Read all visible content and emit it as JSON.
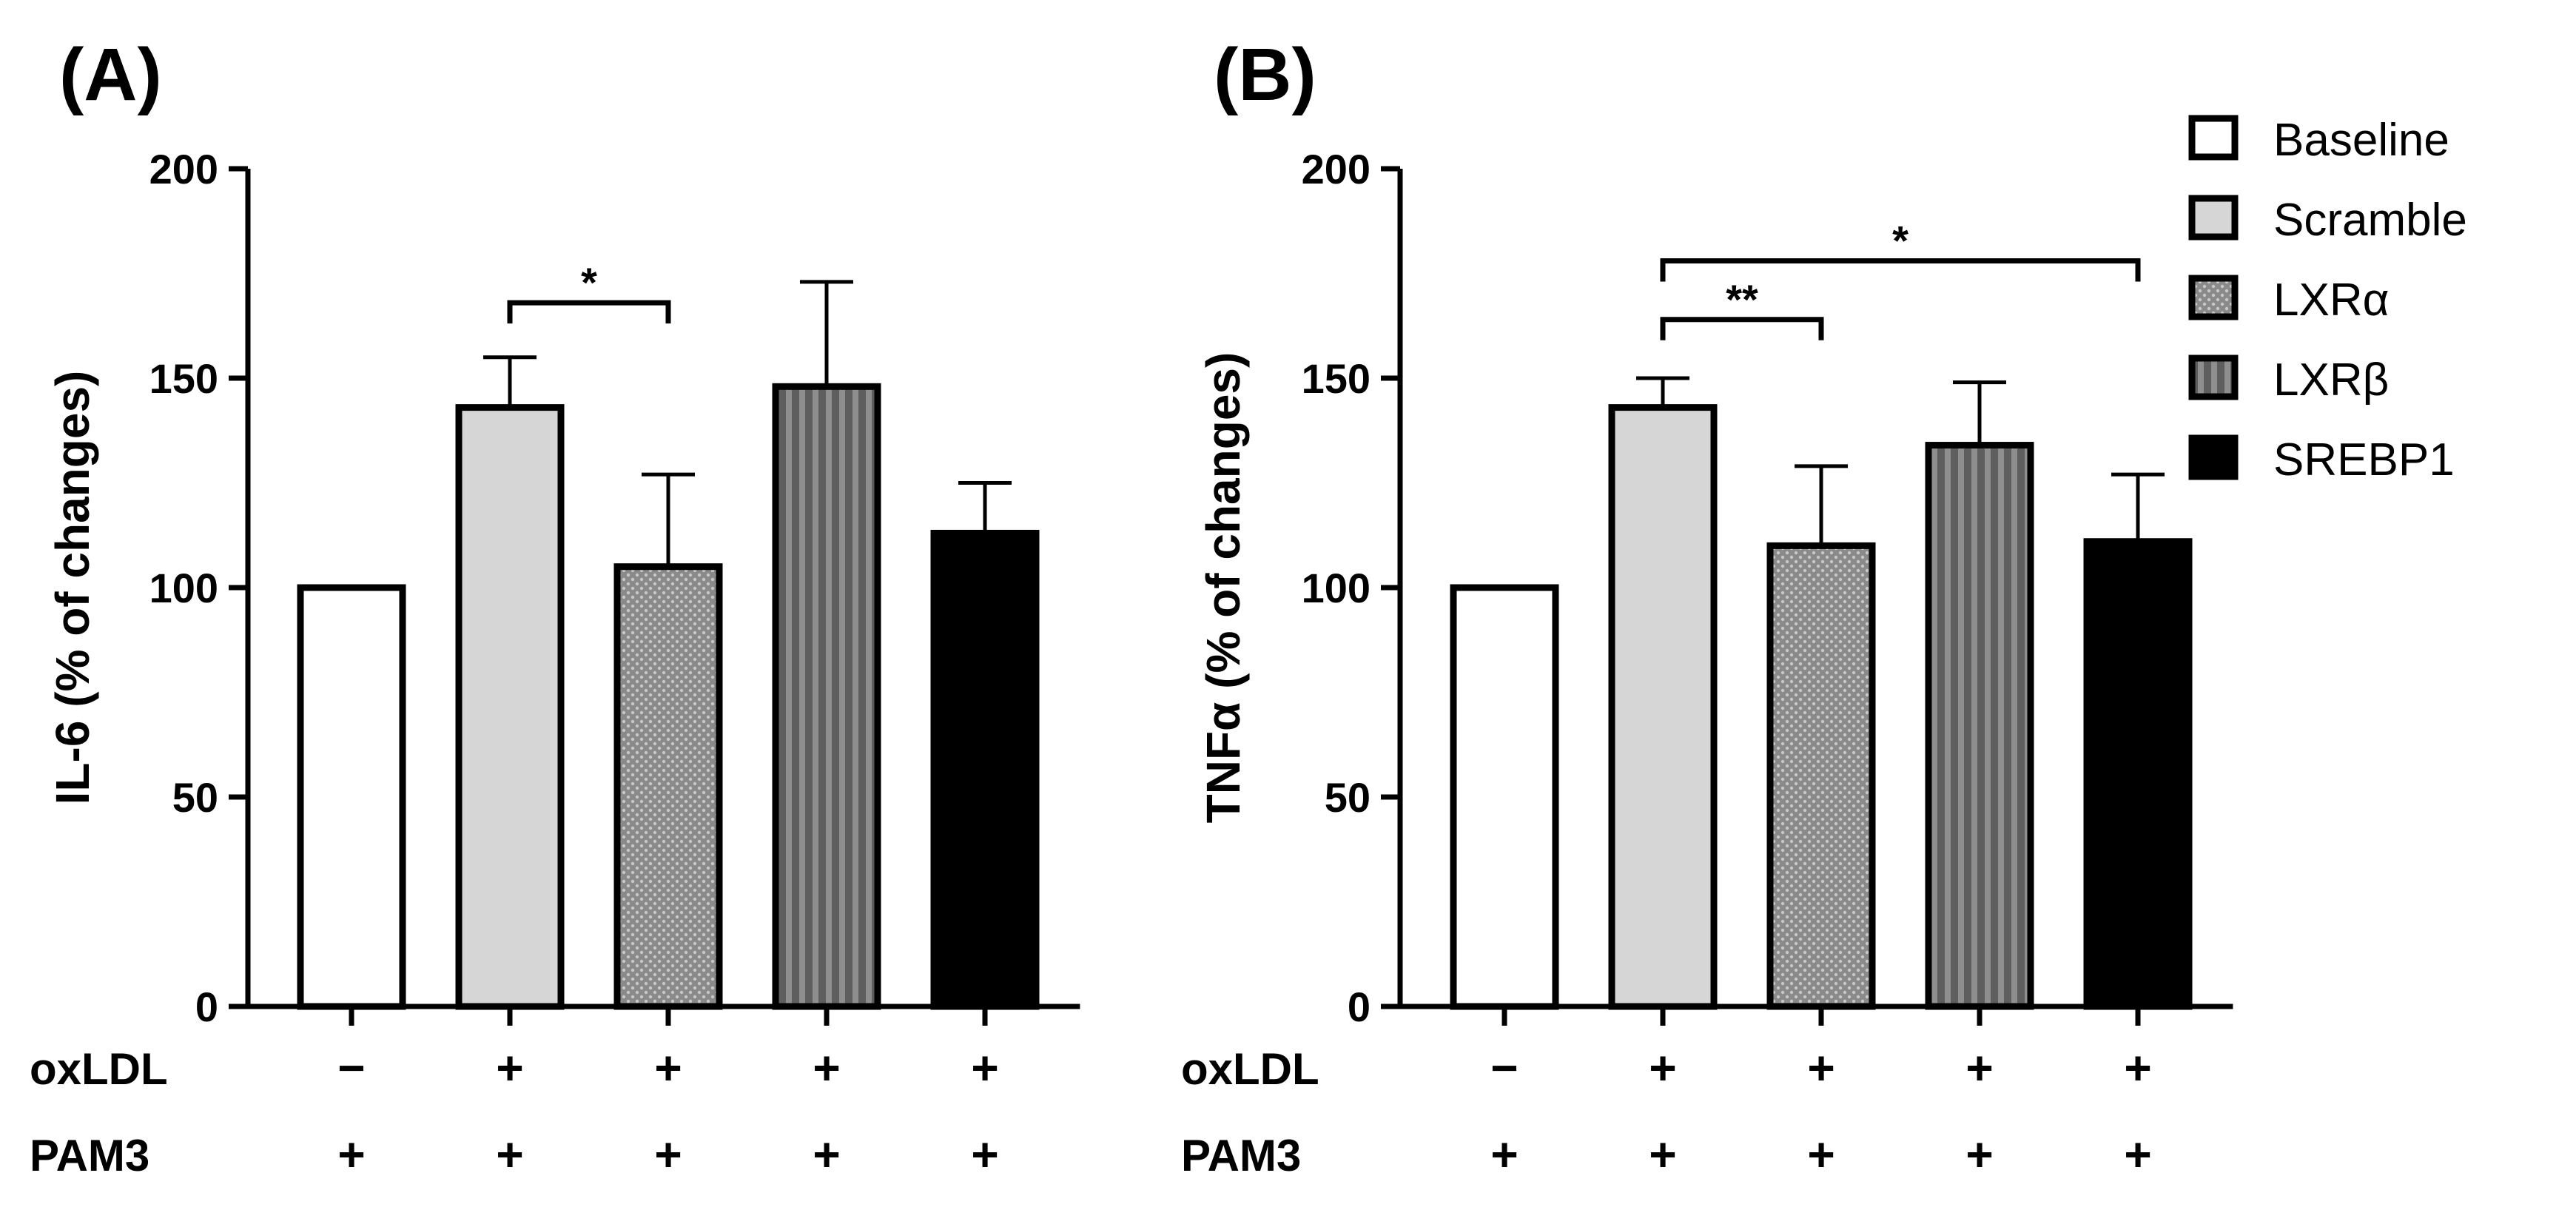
{
  "chart_data": [
    {
      "type": "bar",
      "panel_label": "(A)",
      "ylabel": "IL-6 (% of changes)",
      "ylim": [
        0,
        200
      ],
      "yticks": [
        "0",
        "50",
        "100",
        "150",
        "200"
      ],
      "categories": [
        "Baseline",
        "Scramble",
        "LXRα",
        "LXRβ",
        "SREBP1"
      ],
      "values": [
        100,
        143,
        105,
        148,
        113
      ],
      "errors": [
        0,
        12,
        22,
        25,
        12
      ],
      "significance": [
        {
          "from": 1,
          "to": 2,
          "label": "*",
          "level": 168
        }
      ],
      "conditions": [
        {
          "label": "oxLDL",
          "signs": [
            "−",
            "+",
            "+",
            "+",
            "+"
          ]
        },
        {
          "label": "PAM3",
          "signs": [
            "+",
            "+",
            "+",
            "+",
            "+"
          ]
        }
      ]
    },
    {
      "type": "bar",
      "panel_label": "(B)",
      "ylabel": "TNFα (% of changes)",
      "ylim": [
        0,
        200
      ],
      "yticks": [
        "0",
        "50",
        "100",
        "150",
        "200"
      ],
      "categories": [
        "Baseline",
        "Scramble",
        "LXRα",
        "LXRβ",
        "SREBP1"
      ],
      "values": [
        100,
        143,
        110,
        134,
        111
      ],
      "errors": [
        0,
        7,
        19,
        15,
        16
      ],
      "significance": [
        {
          "from": 1,
          "to": 2,
          "label": "**",
          "level": 164
        },
        {
          "from": 1,
          "to": 4,
          "label": "*",
          "level": 178
        }
      ],
      "conditions": [
        {
          "label": "oxLDL",
          "signs": [
            "−",
            "+",
            "+",
            "+",
            "+"
          ]
        },
        {
          "label": "PAM3",
          "signs": [
            "+",
            "+",
            "+",
            "+",
            "+"
          ]
        }
      ]
    }
  ],
  "legend": [
    {
      "label": "Baseline",
      "style": "white"
    },
    {
      "label": "Scramble",
      "style": "light"
    },
    {
      "label": "LXRα",
      "style": "dots"
    },
    {
      "label": "LXRβ",
      "style": "stripes"
    },
    {
      "label": "SREBP1",
      "style": "black"
    }
  ],
  "colors": {
    "white": "#ffffff",
    "light": "#d6d6d6",
    "dots_bg": "#8a8a8a",
    "dots_fg": "#c8c8c8",
    "stripes_bg": "#5e5e5e",
    "stripes_fg": "#8e8e8e",
    "black": "#000000"
  }
}
